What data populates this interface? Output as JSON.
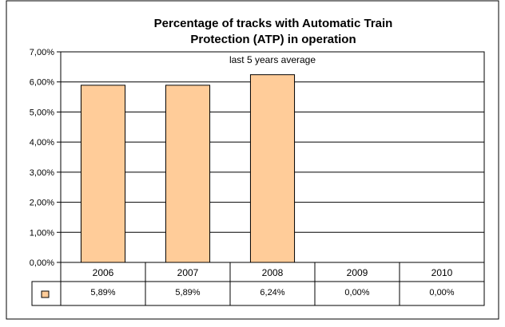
{
  "chart_data": {
    "type": "bar",
    "title": "Percentage of tracks with Automatic Train Protection (ATP) in operation",
    "title_lines": [
      "Percentage of tracks with Automatic Train",
      "Protection (ATP) in operation"
    ],
    "subtitle": "last 5 years average",
    "categories": [
      "2006",
      "2007",
      "2008",
      "2009",
      "2010"
    ],
    "values": [
      5.89,
      5.89,
      6.24,
      0.0,
      0.0
    ],
    "value_labels": [
      "5,89%",
      "5,89%",
      "6,24%",
      "0,00%",
      "0,00%"
    ],
    "ylim": [
      0,
      7
    ],
    "yticks": [
      0,
      1,
      2,
      3,
      4,
      5,
      6,
      7
    ],
    "ytick_labels": [
      "0,00%",
      "1,00%",
      "2,00%",
      "3,00%",
      "4,00%",
      "5,00%",
      "6,00%",
      "7,00%"
    ],
    "xlabel": "",
    "ylabel": "",
    "grid": true,
    "legend": "data table",
    "colors": {
      "bar_fill": "#FFCC99",
      "bar_stroke": "#000000",
      "grid": "#000000",
      "border": "#000000",
      "background": "#FFFFFF"
    }
  }
}
